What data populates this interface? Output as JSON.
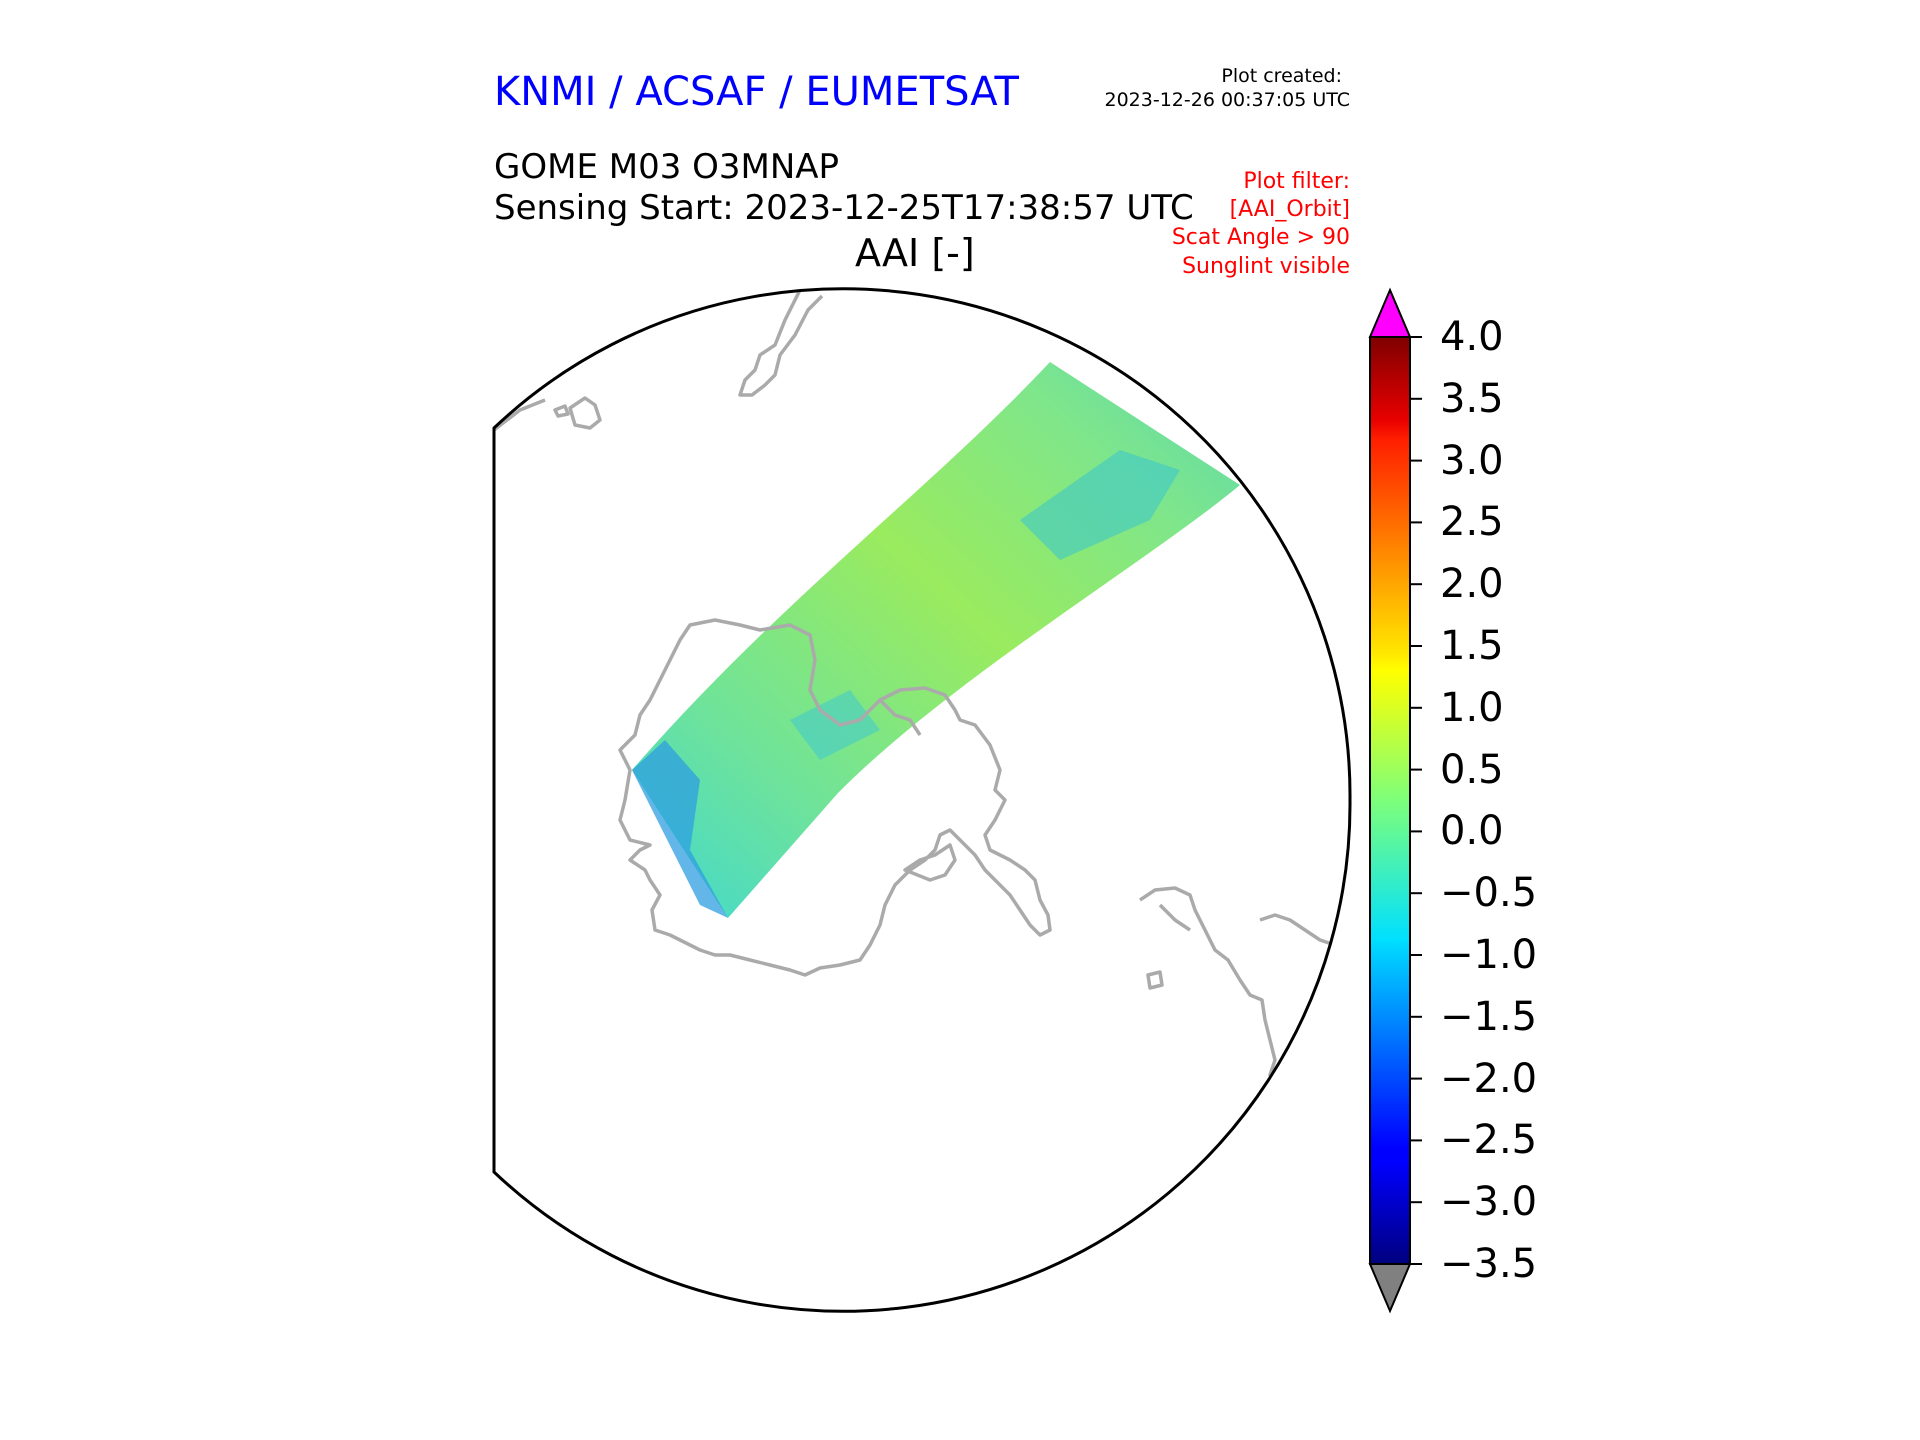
{
  "header": {
    "org": "KNMI / ACSAF / EUMETSAT",
    "created_label": "Plot created:",
    "created_value": "2023-12-26 00:37:05 UTC",
    "product": "GOME M03 O3MNAP",
    "sensing_start": "Sensing Start: 2023-12-25T17:38:57 UTC",
    "variable": "AAI [-]"
  },
  "filters": [
    "Plot filter:",
    "[AAI_Orbit]",
    "Scat Angle > 90",
    "Sunglint visible"
  ],
  "colorbar": {
    "min": -3.5,
    "max": 4.0,
    "ticks": [
      "4.0",
      "3.5",
      "3.0",
      "2.5",
      "2.0",
      "1.5",
      "1.0",
      "0.5",
      "0.0",
      "−0.5",
      "−1.0",
      "−1.5",
      "−2.0",
      "−2.5",
      "−3.0",
      "−3.5"
    ],
    "over_color": "#ff00ff",
    "under_color": "#808080",
    "colormap": "jet"
  },
  "colors": {
    "coastline": "#aaaaaa",
    "swath_main": "#8ee86a",
    "swath_low": "#3fd8c8"
  }
}
